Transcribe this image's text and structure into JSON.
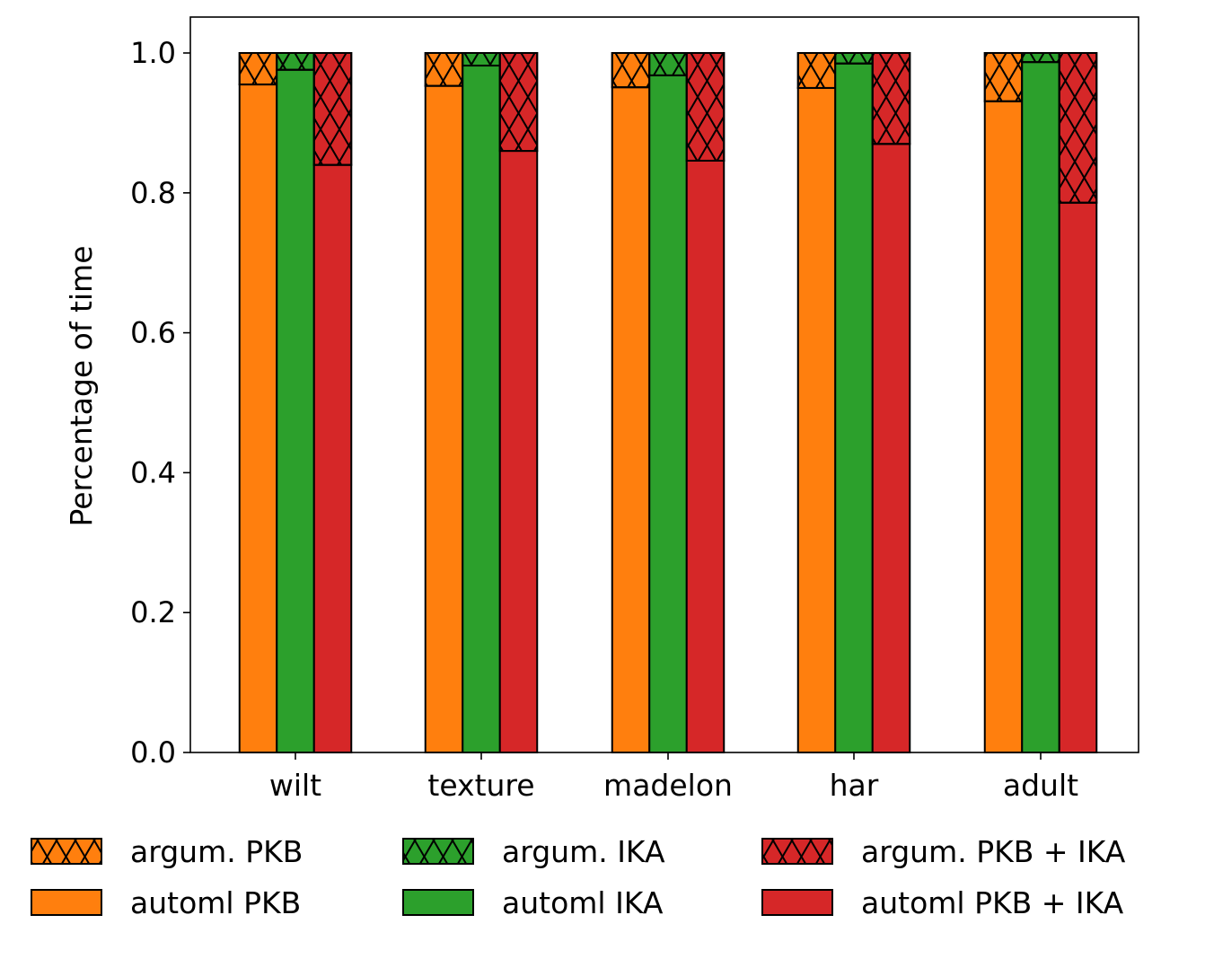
{
  "chart_data": {
    "type": "bar",
    "stacked": true,
    "title": "",
    "xlabel": "",
    "ylabel": "Percentage of time",
    "ylim": [
      0,
      1.05
    ],
    "yticks": [
      "0.0",
      "0.2",
      "0.4",
      "0.6",
      "0.8",
      "1.0"
    ],
    "categories": [
      "wilt",
      "texture",
      "madelon",
      "har",
      "adult"
    ],
    "series": [
      {
        "name": "automl PKB",
        "group": "PKB",
        "color": "#ff7f0e",
        "hatch": false,
        "values": [
          0.955,
          0.953,
          0.951,
          0.95,
          0.931
        ]
      },
      {
        "name": "argum. PKB",
        "group": "PKB",
        "color": "#ff7f0e",
        "hatch": true,
        "values": [
          0.045,
          0.047,
          0.049,
          0.05,
          0.069
        ]
      },
      {
        "name": "automl IKA",
        "group": "IKA",
        "color": "#2ca02c",
        "hatch": false,
        "values": [
          0.976,
          0.982,
          0.968,
          0.985,
          0.987
        ]
      },
      {
        "name": "argum. IKA",
        "group": "IKA",
        "color": "#2ca02c",
        "hatch": true,
        "values": [
          0.024,
          0.018,
          0.032,
          0.015,
          0.013
        ]
      },
      {
        "name": "automl PKB + IKA",
        "group": "PKB+IKA",
        "color": "#d62728",
        "hatch": false,
        "values": [
          0.84,
          0.86,
          0.846,
          0.87,
          0.786
        ]
      },
      {
        "name": "argum. PKB + IKA",
        "group": "PKB+IKA",
        "color": "#d62728",
        "hatch": true,
        "values": [
          0.16,
          0.14,
          0.154,
          0.13,
          0.214
        ]
      }
    ],
    "legend": {
      "placement": "bottom",
      "entries": [
        "argum. PKB",
        "argum. IKA",
        "argum. PKB + IKA",
        "automl PKB",
        "automl IKA",
        "automl PKB + IKA"
      ]
    },
    "grid": false
  }
}
